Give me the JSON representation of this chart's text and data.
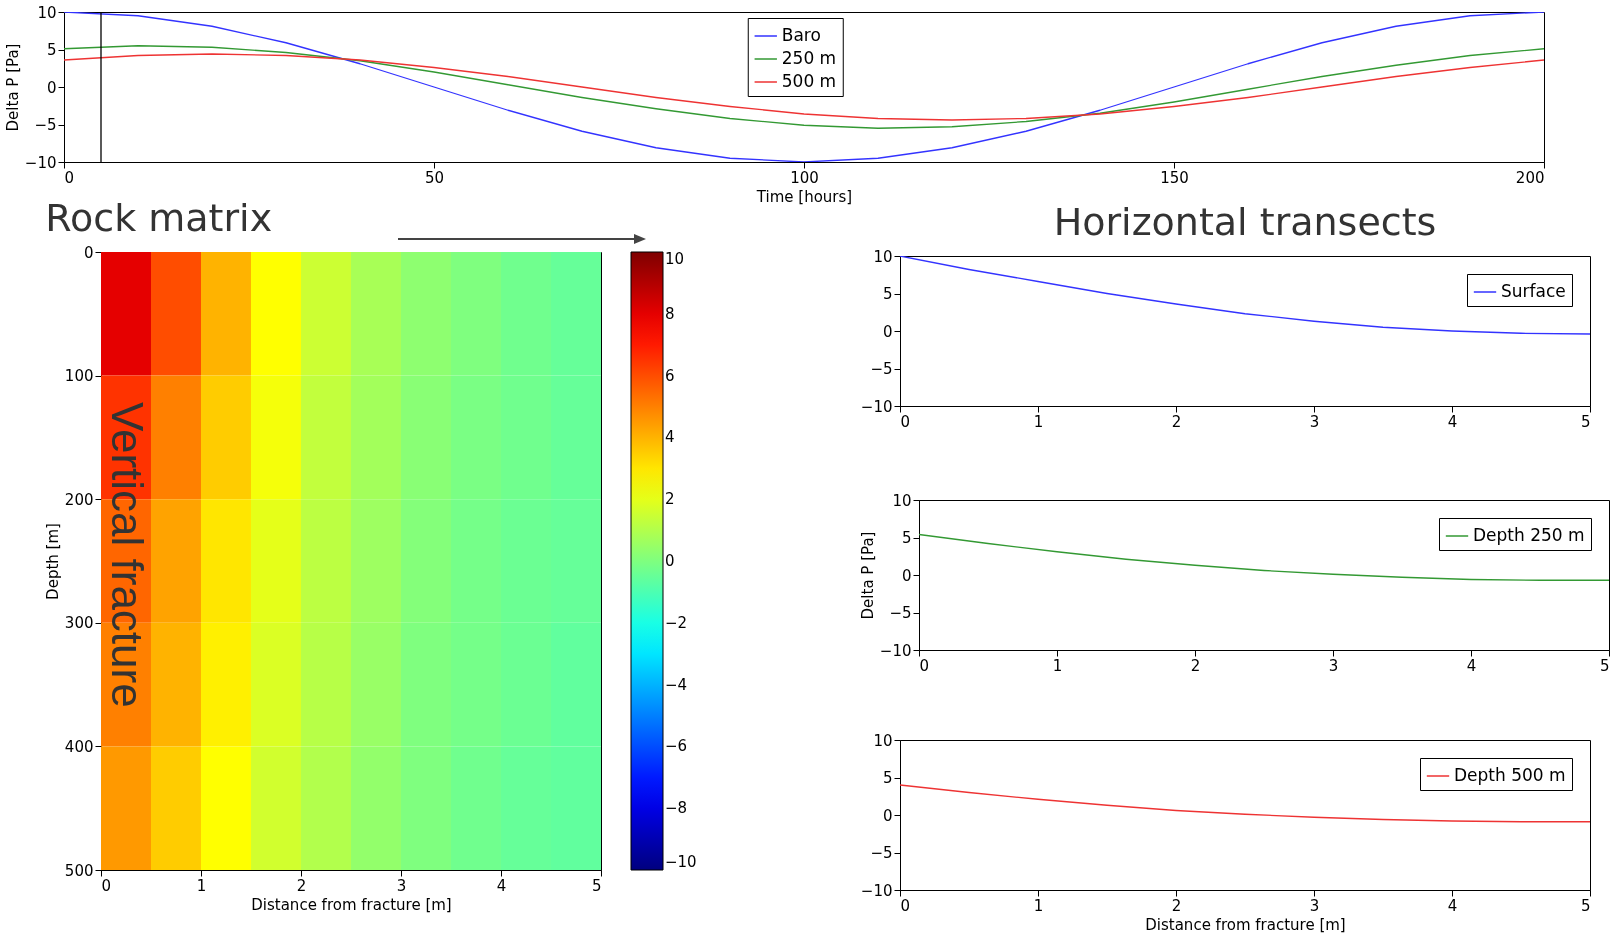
{
  "chart_data": [
    {
      "type": "line",
      "ylabel": "Delta P [Pa]",
      "xlabel": "Time [hours]",
      "x": [
        0,
        10,
        20,
        30,
        40,
        50,
        60,
        70,
        80,
        90,
        100,
        110,
        120,
        130,
        140,
        150,
        160,
        170,
        180,
        190,
        200
      ],
      "xlim": [
        0,
        200
      ],
      "xticks": [
        0,
        50,
        100,
        150,
        200
      ],
      "ylim": [
        -10,
        10
      ],
      "yticks": [
        -10,
        -5,
        0,
        5,
        10
      ],
      "legend": "top",
      "grid": false,
      "series": [
        {
          "name": "Baro",
          "color": "#3333ff",
          "values": [
            10,
            9.5,
            8.1,
            5.9,
            3.1,
            0,
            -3.1,
            -5.9,
            -8.1,
            -9.5,
            -10,
            -9.5,
            -8.1,
            -5.9,
            -3.1,
            0,
            3.1,
            5.9,
            8.1,
            9.5,
            10
          ]
        },
        {
          "name": "250 m",
          "color": "#339933",
          "values": [
            5.1,
            5.5,
            5.3,
            4.6,
            3.5,
            2.0,
            0.3,
            -1.4,
            -2.9,
            -4.2,
            -5.1,
            -5.5,
            -5.3,
            -4.6,
            -3.5,
            -2.0,
            -0.3,
            1.4,
            2.9,
            4.2,
            5.1
          ]
        },
        {
          "name": "500 m",
          "color": "#ee3333",
          "values": [
            3.6,
            4.2,
            4.4,
            4.2,
            3.6,
            2.6,
            1.4,
            0,
            -1.4,
            -2.6,
            -3.6,
            -4.2,
            -4.4,
            -4.2,
            -3.6,
            -2.6,
            -1.4,
            0,
            1.4,
            2.6,
            3.6
          ]
        }
      ],
      "ref_lines": [
        {
          "axis": "x",
          "value": 5,
          "color": "#000000"
        }
      ]
    },
    {
      "type": "heatmap",
      "title": "Rock matrix",
      "xlabel": "Distance from fracture [m]",
      "ylabel": "Depth [m]",
      "annotations": [
        "Vertical fracture"
      ],
      "x": [
        0.25,
        0.75,
        1.25,
        1.75,
        2.25,
        2.75,
        3.25,
        3.75,
        4.25,
        4.75
      ],
      "y": [
        50,
        150,
        250,
        350,
        450
      ],
      "xlim": [
        0,
        5
      ],
      "xticks": [
        0,
        1,
        2,
        3,
        4,
        5
      ],
      "ylim": [
        500,
        0
      ],
      "yticks": [
        0,
        100,
        200,
        300,
        400,
        500
      ],
      "clim": [
        -10,
        10
      ],
      "cticks": [
        -10,
        -8,
        -6,
        -4,
        -2,
        0,
        2,
        4,
        6,
        8,
        10
      ],
      "cells": [
        [
          8,
          6,
          4,
          2.5,
          1.5,
          0.8,
          0.3,
          0,
          -0.3,
          -0.5
        ],
        [
          6.5,
          5,
          3.5,
          2.3,
          1.3,
          0.7,
          0.2,
          -0.1,
          -0.3,
          -0.5
        ],
        [
          5.5,
          4.3,
          3,
          2,
          1.2,
          0.6,
          0.1,
          -0.2,
          -0.4,
          -0.5
        ],
        [
          5,
          4,
          2.8,
          1.8,
          1.1,
          0.5,
          0,
          -0.2,
          -0.4,
          -0.6
        ],
        [
          4.5,
          3.5,
          2.5,
          1.6,
          1,
          0.4,
          0,
          -0.3,
          -0.5,
          -0.6
        ]
      ]
    },
    {
      "type": "line",
      "title": "Horizontal transects",
      "x": [
        0,
        0.5,
        1,
        1.5,
        2,
        2.5,
        3,
        3.5,
        4,
        4.5,
        5
      ],
      "xlim": [
        0,
        5
      ],
      "xticks": [
        0,
        1,
        2,
        3,
        4,
        5
      ],
      "ylim": [
        -10,
        10
      ],
      "yticks": [
        -10,
        -5,
        0,
        5,
        10
      ],
      "legend": "top right",
      "grid": false,
      "series": [
        {
          "name": "Surface",
          "color": "#3333ff",
          "values": [
            10,
            8.2,
            6.6,
            5.0,
            3.6,
            2.3,
            1.3,
            0.5,
            0,
            -0.3,
            -0.4
          ]
        }
      ]
    },
    {
      "type": "line",
      "ylabel": "Delta P [Pa]",
      "x": [
        0,
        0.5,
        1,
        1.5,
        2,
        2.5,
        3,
        3.5,
        4,
        4.5,
        5
      ],
      "xlim": [
        0,
        5
      ],
      "xticks": [
        0,
        1,
        2,
        3,
        4,
        5
      ],
      "ylim": [
        -10,
        10
      ],
      "yticks": [
        -10,
        -5,
        0,
        5,
        10
      ],
      "legend": "top right",
      "grid": false,
      "series": [
        {
          "name": "Depth 250 m",
          "color": "#339933",
          "values": [
            5.4,
            4.2,
            3.1,
            2.1,
            1.3,
            0.6,
            0.1,
            -0.3,
            -0.6,
            -0.7,
            -0.7
          ]
        }
      ]
    },
    {
      "type": "line",
      "xlabel": "Distance from fracture [m]",
      "x": [
        0,
        0.5,
        1,
        1.5,
        2,
        2.5,
        3,
        3.5,
        4,
        4.5,
        5
      ],
      "xlim": [
        0,
        5
      ],
      "xticks": [
        0,
        1,
        2,
        3,
        4,
        5
      ],
      "ylim": [
        -10,
        10
      ],
      "yticks": [
        -10,
        -5,
        0,
        5,
        10
      ],
      "legend": "top right",
      "grid": false,
      "series": [
        {
          "name": "Depth 500 m",
          "color": "#ee3333",
          "values": [
            4.0,
            3.0,
            2.1,
            1.3,
            0.6,
            0.1,
            -0.3,
            -0.6,
            -0.8,
            -0.9,
            -0.9
          ]
        }
      ]
    }
  ]
}
